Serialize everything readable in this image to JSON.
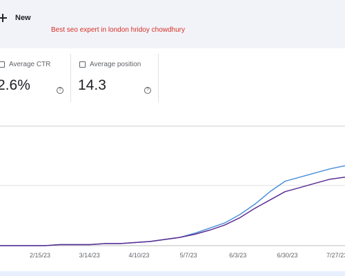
{
  "toolbar": {
    "new_label": "New"
  },
  "overlay": {
    "text": "Best seo expert in london hridoy chowdhury"
  },
  "metrics": [
    {
      "label": "Average CTR",
      "value": "2.6%",
      "help": "?"
    },
    {
      "label": "Average position",
      "value": "14.3",
      "help": "?"
    }
  ],
  "chart_data": {
    "type": "line",
    "x_ticks": [
      "2/15/23",
      "3/14/23",
      "4/10/23",
      "5/7/23",
      "6/3/23",
      "6/30/23",
      "7/27/23"
    ],
    "grid": true,
    "colors": {
      "series_a": "#4a90d9",
      "series_b": "#5c2d91"
    },
    "series": [
      {
        "values": [
          0,
          0,
          0,
          0,
          1,
          1,
          1,
          2,
          2,
          3,
          4,
          6,
          8,
          12,
          17,
          22,
          30,
          40,
          52,
          62,
          66,
          70,
          74,
          77
        ]
      },
      {
        "values": [
          0,
          0,
          0,
          0,
          1,
          1,
          1,
          2,
          2,
          3,
          4,
          6,
          8,
          11,
          15,
          20,
          27,
          36,
          44,
          52,
          56,
          60,
          64,
          66
        ]
      }
    ]
  }
}
